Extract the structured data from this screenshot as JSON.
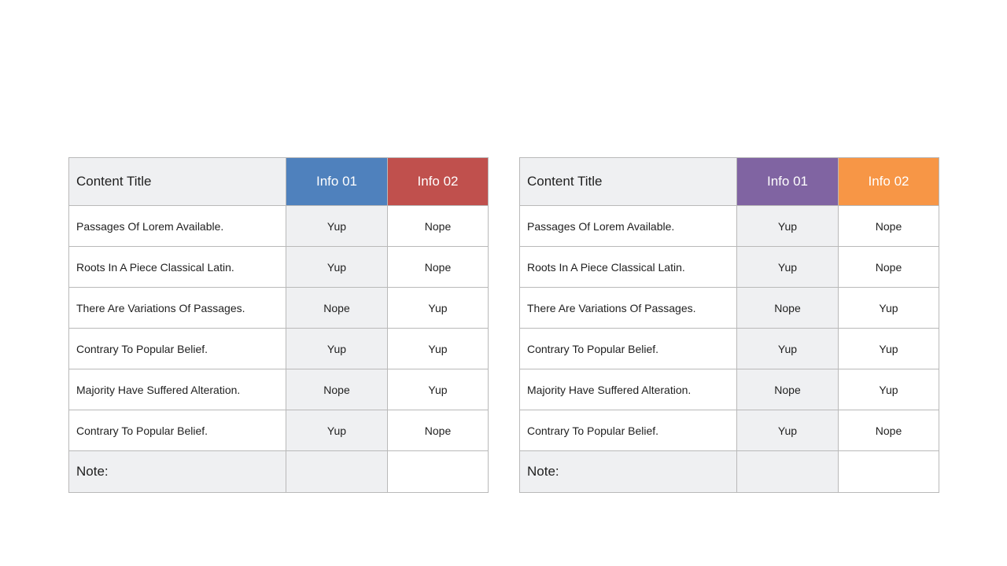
{
  "tables": [
    {
      "header": {
        "title": "Content Title",
        "info1": "Info 01",
        "info2": "Info 02"
      },
      "colors": {
        "info1": "#4f81bd",
        "info2": "#c0504d"
      },
      "rows": [
        {
          "label": "Passages Of Lorem Available.",
          "info1": "Yup",
          "info2": "Nope"
        },
        {
          "label": "Roots In A Piece Classical Latin.",
          "info1": "Yup",
          "info2": "Nope"
        },
        {
          "label": "There Are Variations Of Passages.",
          "info1": "Nope",
          "info2": "Yup"
        },
        {
          "label": "Contrary To Popular Belief.",
          "info1": "Yup",
          "info2": "Yup"
        },
        {
          "label": "Majority Have Suffered Alteration.",
          "info1": "Nope",
          "info2": "Yup"
        },
        {
          "label": "Contrary To Popular Belief.",
          "info1": "Yup",
          "info2": "Nope"
        }
      ],
      "note": "Note:"
    },
    {
      "header": {
        "title": "Content Title",
        "info1": "Info 01",
        "info2": "Info 02"
      },
      "colors": {
        "info1": "#8064a2",
        "info2": "#f79646"
      },
      "rows": [
        {
          "label": "Passages Of Lorem Available.",
          "info1": "Yup",
          "info2": "Nope"
        },
        {
          "label": "Roots In A Piece Classical Latin.",
          "info1": "Yup",
          "info2": "Nope"
        },
        {
          "label": "There Are Variations Of Passages.",
          "info1": "Nope",
          "info2": "Yup"
        },
        {
          "label": "Contrary To Popular Belief.",
          "info1": "Yup",
          "info2": "Yup"
        },
        {
          "label": "Majority Have Suffered Alteration.",
          "info1": "Nope",
          "info2": "Yup"
        },
        {
          "label": "Contrary To Popular Belief.",
          "info1": "Yup",
          "info2": "Nope"
        }
      ],
      "note": "Note:"
    }
  ]
}
